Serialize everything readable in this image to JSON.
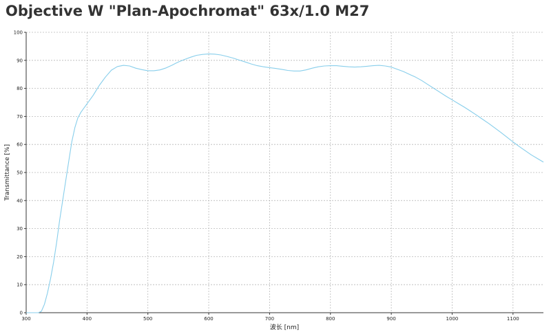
{
  "chart_data": {
    "type": "line",
    "title": "Objective W \"Plan-Apochromat\" 63x/1.0 M27",
    "xlabel": "波长 [nm]",
    "ylabel": "Transmittance [%]",
    "xlim": [
      300,
      1150
    ],
    "ylim": [
      0,
      100
    ],
    "xticks": [
      300,
      400,
      500,
      600,
      700,
      800,
      900,
      1000,
      1100
    ],
    "yticks": [
      0,
      10,
      20,
      30,
      40,
      50,
      60,
      70,
      80,
      90,
      100
    ],
    "grid": true,
    "line_color": "#87ceeb",
    "series": [
      {
        "x": [
          300,
          320,
          325,
          330,
          335,
          340,
          345,
          350,
          355,
          360,
          365,
          370,
          375,
          380,
          385,
          390,
          395,
          400,
          410,
          420,
          430,
          440,
          450,
          460,
          470,
          480,
          490,
          500,
          510,
          520,
          530,
          540,
          550,
          560,
          570,
          580,
          590,
          600,
          610,
          620,
          630,
          640,
          650,
          660,
          670,
          680,
          690,
          700,
          710,
          720,
          730,
          740,
          750,
          760,
          770,
          780,
          790,
          800,
          810,
          820,
          830,
          840,
          850,
          860,
          870,
          880,
          890,
          900,
          910,
          920,
          930,
          940,
          950,
          960,
          970,
          980,
          990,
          1000,
          1010,
          1020,
          1030,
          1040,
          1050,
          1060,
          1070,
          1080,
          1090,
          1100,
          1110,
          1120,
          1130,
          1140,
          1150
        ],
        "y": [
          0,
          0,
          0.5,
          3,
          7,
          12,
          18,
          25,
          33,
          40,
          47,
          54,
          61,
          66,
          69.5,
          71.5,
          73,
          74.5,
          77.5,
          81,
          84,
          86.5,
          87.8,
          88.2,
          88,
          87.2,
          86.7,
          86.3,
          86.3,
          86.6,
          87.3,
          88.3,
          89.4,
          90.3,
          91.1,
          91.8,
          92.1,
          92.3,
          92.2,
          91.9,
          91.4,
          90.8,
          90.1,
          89.4,
          88.7,
          88.1,
          87.7,
          87.4,
          87.1,
          86.8,
          86.4,
          86.2,
          86.2,
          86.6,
          87.2,
          87.7,
          88,
          88.1,
          88.1,
          87.9,
          87.7,
          87.6,
          87.7,
          87.9,
          88.1,
          88.2,
          88,
          87.6,
          86.8,
          86,
          85,
          84,
          82.8,
          81.4,
          80,
          78.6,
          77.2,
          75.9,
          74.6,
          73.3,
          71.9,
          70.5,
          69,
          67.5,
          65.9,
          64.3,
          62.6,
          60.9,
          59.3,
          57.8,
          56.3,
          55,
          53.7
        ]
      }
    ]
  }
}
